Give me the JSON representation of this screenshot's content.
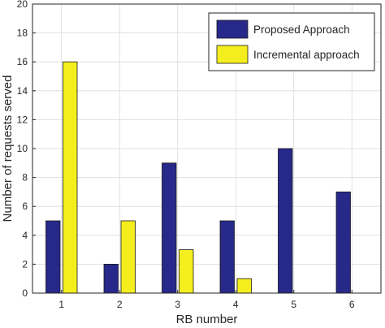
{
  "chart_data": {
    "type": "bar",
    "categories": [
      "1",
      "2",
      "3",
      "4",
      "5",
      "6"
    ],
    "series": [
      {
        "name": "Proposed Approach",
        "values": [
          5,
          2,
          9,
          5,
          10,
          7
        ],
        "color": "#27298a"
      },
      {
        "name": "Incremental approach",
        "values": [
          16,
          5,
          3,
          1,
          0,
          0
        ],
        "color": "#f5ee1f"
      }
    ],
    "title": "",
    "xlabel": "RB  number",
    "ylabel": "Number of requests served",
    "ylim": [
      0,
      20
    ],
    "yticks": [
      0,
      2,
      4,
      6,
      8,
      10,
      12,
      14,
      16,
      18,
      20
    ],
    "grid": true,
    "legend_position": "top-right"
  }
}
